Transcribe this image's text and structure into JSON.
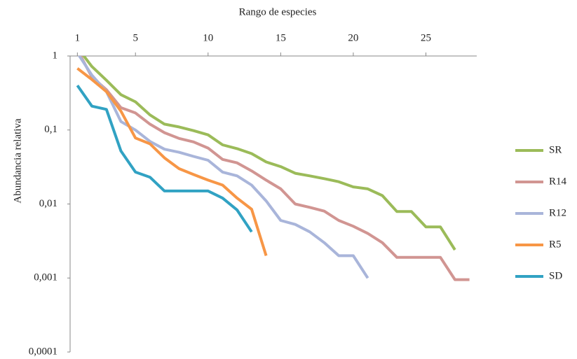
{
  "chart_data": {
    "type": "line",
    "x_label": "Rango de especies",
    "y_label": "Abundancia relativa",
    "x": [
      1,
      2,
      3,
      4,
      5,
      6,
      7,
      8,
      9,
      10,
      11,
      12,
      13,
      14,
      15,
      16,
      17,
      18,
      19,
      20,
      21,
      22,
      23,
      24,
      25,
      26,
      27,
      28
    ],
    "xlim": [
      0.5,
      28.5
    ],
    "xticks": [
      1,
      5,
      10,
      15,
      20,
      25
    ],
    "x_axis_position": "top",
    "ylim": [
      0.0001,
      1
    ],
    "log_y": true,
    "yticks": [
      {
        "value": 0.0001,
        "label": "0,0001"
      },
      {
        "value": 0.001,
        "label": "0,001"
      },
      {
        "value": 0.01,
        "label": "0,01"
      },
      {
        "value": 0.1,
        "label": "0,1"
      },
      1
    ],
    "legend_position": "right",
    "series": [
      {
        "name": "SR",
        "color": "#9bbb59",
        "values": [
          1.3,
          0.72,
          0.47,
          0.3,
          0.24,
          0.16,
          0.12,
          0.11,
          0.098,
          0.086,
          0.063,
          0.056,
          0.048,
          0.037,
          0.032,
          0.026,
          0.024,
          0.022,
          0.02,
          0.017,
          0.016,
          0.013,
          0.0079,
          0.0079,
          0.0049,
          0.0049,
          0.0024,
          null
        ]
      },
      {
        "name": "R14",
        "color": "#d19592",
        "values": [
          1.2,
          0.52,
          0.35,
          0.2,
          0.17,
          0.12,
          0.092,
          0.077,
          0.069,
          0.057,
          0.04,
          0.036,
          0.028,
          0.021,
          0.016,
          0.01,
          0.009,
          0.008,
          0.006,
          0.005,
          0.004,
          0.003,
          0.0019,
          0.0019,
          0.0019,
          0.0019,
          0.00095,
          0.00095
        ]
      },
      {
        "name": "R12",
        "color": "#a9b5da",
        "values": [
          1.1,
          0.55,
          0.33,
          0.13,
          0.1,
          0.07,
          0.055,
          0.05,
          0.044,
          0.039,
          0.027,
          0.024,
          0.018,
          0.011,
          0.006,
          0.0053,
          0.0042,
          0.003,
          0.002,
          0.002,
          0.001,
          null,
          null,
          null,
          null,
          null,
          null,
          null
        ]
      },
      {
        "name": "R5",
        "color": "#f79646",
        "values": [
          0.68,
          0.48,
          0.33,
          0.18,
          0.078,
          0.065,
          0.042,
          0.03,
          0.025,
          0.021,
          0.018,
          0.012,
          0.0085,
          0.002,
          null,
          null,
          null,
          null,
          null,
          null,
          null,
          null,
          null,
          null,
          null,
          null,
          null,
          null
        ]
      },
      {
        "name": "SD",
        "color": "#31a2c3",
        "values": [
          0.4,
          0.21,
          0.19,
          0.052,
          0.027,
          0.023,
          0.015,
          0.015,
          0.015,
          0.015,
          0.012,
          0.0083,
          0.0042,
          null,
          null,
          null,
          null,
          null,
          null,
          null,
          null,
          null,
          null,
          null,
          null,
          null,
          null,
          null
        ]
      }
    ]
  }
}
